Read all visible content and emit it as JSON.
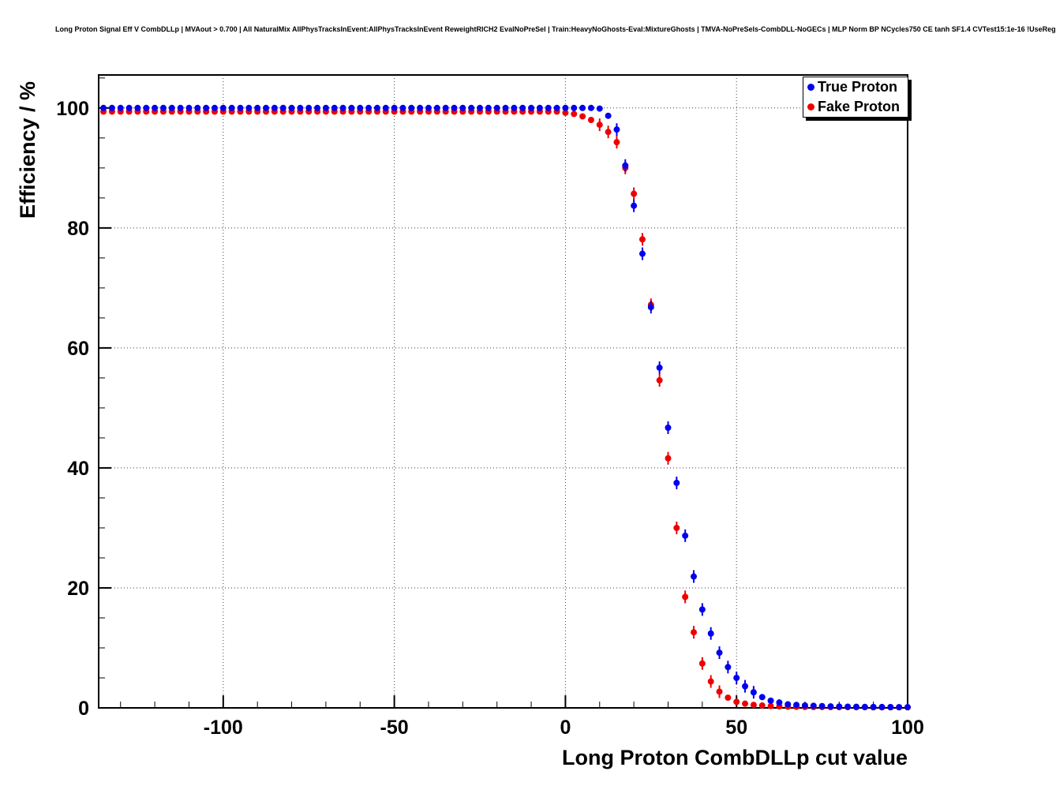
{
  "title": "Long Proton Signal Eff V CombDLLp | MVAout > 0.700 | All NaturalMix AllPhysTracksInEvent:AllPhysTracksInEvent ReweightRICH2 EvalNoPreSel | Train:HeavyNoGhosts-Eval:MixtureGhosts | TMVA-NoPreSels-CombDLL-NoGECs | MLP Norm BP NCycles750 CE tanh SF1.4 CVTest15:1e-16 !UseReg",
  "legend": {
    "entries": [
      {
        "label": "True Proton",
        "color": "#0000ee"
      },
      {
        "label": "Fake Proton",
        "color": "#ee0000"
      }
    ]
  },
  "chart_data": {
    "type": "scatter",
    "title": "Long Proton Signal Eff V CombDLLp",
    "xlabel": "Long Proton CombDLLp cut value",
    "ylabel": "Efficiency / %",
    "xlim": [
      -136.4,
      100
    ],
    "ylim": [
      0,
      105.5
    ],
    "x_ticks": [
      -100,
      -50,
      0,
      50,
      100
    ],
    "y_ticks": [
      0,
      20,
      40,
      60,
      80,
      100
    ],
    "x_minor_step": 10,
    "y_minor_step": 5,
    "grid": true,
    "grid_style": "dotted",
    "legend_position": "top-right",
    "marker": "circle",
    "marker_size": 4,
    "x": [
      -135,
      -132.5,
      -130,
      -127.5,
      -125,
      -122.5,
      -120,
      -117.5,
      -115,
      -112.5,
      -110,
      -107.5,
      -105,
      -102.5,
      -100,
      -97.5,
      -95,
      -92.5,
      -90,
      -87.5,
      -85,
      -82.5,
      -80,
      -77.5,
      -75,
      -72.5,
      -70,
      -67.5,
      -65,
      -62.5,
      -60,
      -57.5,
      -55,
      -52.5,
      -50,
      -47.5,
      -45,
      -42.5,
      -40,
      -37.5,
      -35,
      -32.5,
      -30,
      -27.5,
      -25,
      -22.5,
      -20,
      -17.5,
      -15,
      -12.5,
      -10,
      -7.5,
      -5,
      -2.5,
      0,
      2.5,
      5,
      7.5,
      10,
      12.5,
      15,
      17.5,
      20,
      22.5,
      25,
      27.5,
      30,
      32.5,
      35,
      37.5,
      40,
      42.5,
      45,
      47.5,
      50,
      52.5,
      55,
      57.5,
      60,
      62.5,
      65,
      67.5,
      70,
      72.5,
      75,
      77.5,
      80,
      82.5,
      85,
      87.5,
      90,
      92.5,
      95,
      97.5,
      100
    ],
    "series": [
      {
        "name": "True Proton",
        "color": "#0000ee",
        "y": [
          100,
          100,
          100,
          100,
          100,
          100,
          100,
          100,
          100,
          100,
          100,
          100,
          100,
          100,
          100,
          100,
          100,
          100,
          100,
          100,
          100,
          100,
          100,
          100,
          100,
          100,
          100,
          100,
          100,
          100,
          100,
          100,
          100,
          100,
          100,
          100,
          100,
          100,
          100,
          100,
          100,
          100,
          100,
          100,
          100,
          100,
          100,
          100,
          100,
          100,
          100,
          100,
          100,
          100,
          100,
          100,
          100,
          100,
          99.9,
          98.7,
          96.4,
          90.4,
          83.7,
          75.7,
          66.8,
          56.7,
          46.7,
          37.5,
          28.7,
          21.9,
          16.4,
          12.4,
          9.2,
          6.8,
          5.0,
          3.6,
          2.6,
          1.8,
          1.2,
          0.9,
          0.6,
          0.5,
          0.4,
          0.35,
          0.3,
          0.25,
          0.22,
          0.2,
          0.18,
          0.16,
          0.15,
          0.14,
          0.13,
          0.12,
          0.12
        ]
      },
      {
        "name": "Fake Proton",
        "color": "#ee0000",
        "y": [
          99.4,
          99.4,
          99.4,
          99.4,
          99.4,
          99.4,
          99.4,
          99.4,
          99.4,
          99.4,
          99.4,
          99.4,
          99.4,
          99.4,
          99.4,
          99.4,
          99.4,
          99.4,
          99.4,
          99.4,
          99.4,
          99.4,
          99.4,
          99.4,
          99.4,
          99.4,
          99.4,
          99.4,
          99.4,
          99.4,
          99.4,
          99.4,
          99.4,
          99.4,
          99.4,
          99.4,
          99.4,
          99.4,
          99.4,
          99.4,
          99.4,
          99.4,
          99.4,
          99.4,
          99.4,
          99.4,
          99.4,
          99.4,
          99.4,
          99.4,
          99.4,
          99.4,
          99.4,
          99.4,
          99.2,
          99.0,
          98.6,
          98.0,
          97.2,
          96.0,
          94.3,
          90.0,
          85.7,
          78.1,
          67.2,
          54.6,
          41.6,
          30.0,
          18.5,
          12.6,
          7.4,
          4.4,
          2.7,
          1.7,
          1.0,
          0.7,
          0.5,
          0.4,
          0.3,
          0.25,
          0.2,
          0.18,
          0.16,
          0.15,
          0.14,
          0.13,
          0.12,
          0.12,
          0.11,
          0.11,
          0.1,
          0.1,
          0.1,
          0.1,
          0.1
        ]
      }
    ]
  }
}
